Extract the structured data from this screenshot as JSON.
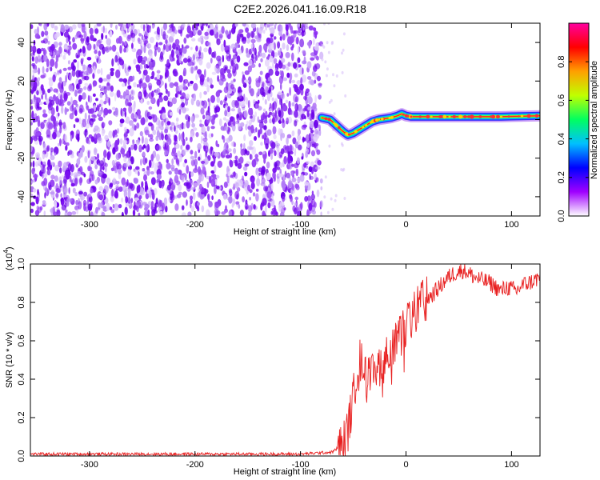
{
  "title": "C2E2.2026.041.16.09.R18",
  "chart_data": [
    {
      "type": "heatmap",
      "xlabel": "Height of straight line (km)",
      "ylabel": "Frequency (Hz)",
      "xlim": [
        -356,
        127
      ],
      "ylim": [
        -50,
        50
      ],
      "xticks": [
        -300,
        -200,
        -100,
        0,
        100
      ],
      "yticks": [
        -40,
        -20,
        0,
        20,
        40
      ],
      "noise_region_x": [
        -356,
        -80
      ],
      "signal_track": {
        "x": [
          -80,
          -72,
          -66,
          -60,
          -55,
          -50,
          -44,
          -38,
          -32,
          -26,
          -20,
          -14,
          -8,
          -4,
          0,
          5,
          20,
          50,
          90,
          127
        ],
        "y": [
          1,
          0,
          -3,
          -6,
          -8,
          -7,
          -5,
          -3,
          -1,
          0,
          0.5,
          1,
          2,
          3,
          2,
          1.5,
          1.5,
          1.5,
          1.5,
          2
        ]
      },
      "colorbar": {
        "label": "Normalized spectral amplitude",
        "ticks": [
          "0.0",
          "0.2",
          "0.4",
          "0.6",
          "0.8"
        ],
        "range": [
          0,
          1
        ],
        "colors": [
          "#ffffff",
          "#a000ff",
          "#0000ff",
          "#00c0ff",
          "#00ff60",
          "#c0ff00",
          "#ffa000",
          "#ff0000",
          "#ff00a0"
        ]
      }
    },
    {
      "type": "line",
      "xlabel": "Height of straight line (km)",
      "ylabel": "SNR (10 * v/v)",
      "multiplier": "(x10",
      "exponent": "4",
      "multiplier_close": ")",
      "xlim": [
        -356,
        127
      ],
      "ylim": [
        0,
        1
      ],
      "xticks": [
        -300,
        -200,
        -100,
        0,
        100
      ],
      "yticks": [
        "0.0",
        "0.2",
        "0.4",
        "0.6",
        "0.8",
        "1.0"
      ],
      "series": [
        {
          "name": "SNR",
          "color": "#e82020",
          "x": [
            -356,
            -300,
            -200,
            -100,
            -70,
            -60,
            -55,
            -50,
            -45,
            -40,
            -35,
            -30,
            -25,
            -20,
            -15,
            -10,
            -5,
            0,
            5,
            10,
            15,
            20,
            25,
            30,
            35,
            40,
            45,
            50,
            55,
            60,
            65,
            70,
            75,
            80,
            85,
            90,
            95,
            100,
            105,
            110,
            115,
            120,
            127
          ],
          "values": [
            0.01,
            0.01,
            0.01,
            0.01,
            0.02,
            0.06,
            0.14,
            0.3,
            0.52,
            0.45,
            0.4,
            0.42,
            0.48,
            0.5,
            0.55,
            0.58,
            0.62,
            0.68,
            0.72,
            0.76,
            0.8,
            0.82,
            0.84,
            0.87,
            0.9,
            0.93,
            0.95,
            0.96,
            0.97,
            0.95,
            0.93,
            0.92,
            0.91,
            0.9,
            0.88,
            0.86,
            0.88,
            0.87,
            0.86,
            0.89,
            0.9,
            0.91,
            0.93
          ]
        }
      ]
    }
  ]
}
